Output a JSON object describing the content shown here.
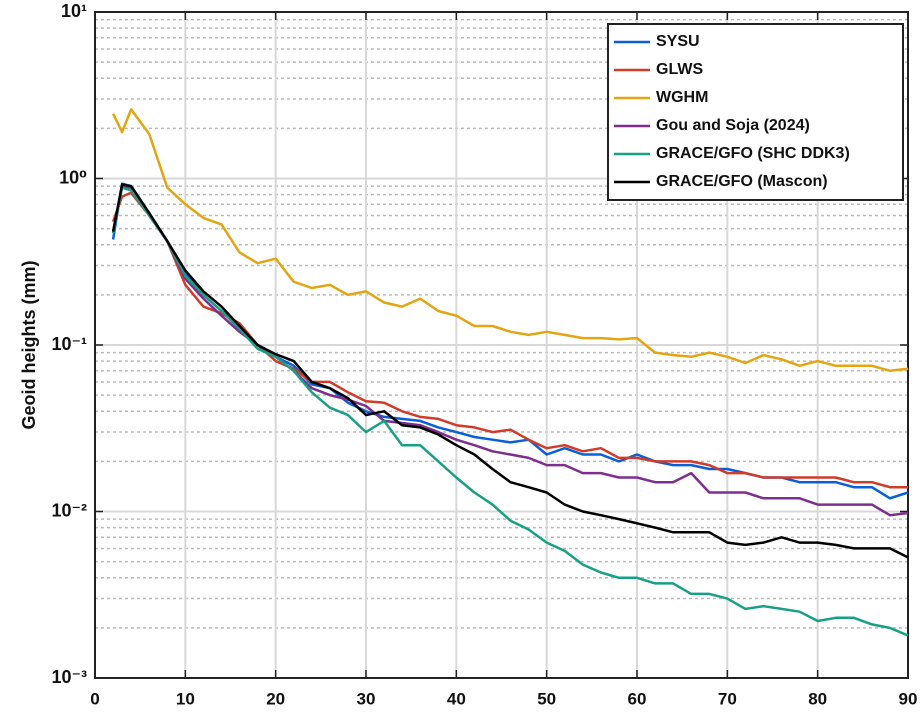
{
  "chart_data": {
    "type": "line",
    "y_label": "Geoid heights (mm)",
    "log_y": true,
    "grid": true,
    "legend": "top-right",
    "xlim": [
      0,
      90
    ],
    "xticks": [
      0,
      10,
      20,
      30,
      40,
      50,
      60,
      70,
      80,
      90
    ],
    "ylim": [
      0.001,
      10
    ],
    "yticks": [
      {
        "value": 0.001,
        "label": "10⁻³"
      },
      {
        "value": 0.01,
        "label": "10⁻²"
      },
      {
        "value": 0.1,
        "label": "10⁻¹"
      },
      {
        "value": 1,
        "label": "10⁰"
      },
      {
        "value": 10,
        "label": "10¹"
      }
    ],
    "yminor_ticks": [
      0.002,
      0.003,
      0.004,
      0.005,
      0.006,
      0.007,
      0.008,
      0.009,
      0.02,
      0.03,
      0.04,
      0.05,
      0.06,
      0.07,
      0.08,
      0.09,
      0.2,
      0.3,
      0.4,
      0.5,
      0.6,
      0.7,
      0.8,
      0.9,
      2,
      3,
      4,
      5,
      6,
      7,
      8,
      9
    ],
    "x": [
      2,
      3,
      4,
      6,
      8,
      10,
      12,
      14,
      16,
      18,
      20,
      22,
      24,
      26,
      28,
      30,
      32,
      34,
      36,
      38,
      40,
      42,
      44,
      46,
      48,
      50,
      52,
      54,
      56,
      58,
      60,
      62,
      64,
      66,
      68,
      70,
      72,
      74,
      76,
      78,
      80,
      82,
      84,
      86,
      88,
      90
    ],
    "series": [
      {
        "name": "SYSU",
        "color": "#0a5fd7",
        "values": [
          0.43,
          0.93,
          0.9,
          0.62,
          0.42,
          0.27,
          0.2,
          0.16,
          0.13,
          0.1,
          0.085,
          0.075,
          0.058,
          0.055,
          0.045,
          0.04,
          0.037,
          0.036,
          0.035,
          0.032,
          0.03,
          0.028,
          0.027,
          0.026,
          0.027,
          0.022,
          0.024,
          0.022,
          0.022,
          0.02,
          0.022,
          0.02,
          0.019,
          0.019,
          0.018,
          0.018,
          0.017,
          0.016,
          0.016,
          0.015,
          0.015,
          0.015,
          0.014,
          0.014,
          0.012,
          0.013
        ]
      },
      {
        "name": "GLWS",
        "color": "#d03b2a",
        "values": [
          0.55,
          0.78,
          0.82,
          0.6,
          0.42,
          0.23,
          0.17,
          0.155,
          0.135,
          0.1,
          0.08,
          0.072,
          0.06,
          0.06,
          0.052,
          0.046,
          0.045,
          0.04,
          0.037,
          0.036,
          0.033,
          0.032,
          0.03,
          0.031,
          0.027,
          0.024,
          0.025,
          0.023,
          0.024,
          0.021,
          0.021,
          0.02,
          0.02,
          0.02,
          0.019,
          0.017,
          0.017,
          0.016,
          0.016,
          0.016,
          0.016,
          0.016,
          0.015,
          0.015,
          0.014,
          0.014
        ]
      },
      {
        "name": "WGHM",
        "color": "#e3a511",
        "values": [
          2.45,
          1.9,
          2.6,
          1.85,
          0.88,
          0.7,
          0.58,
          0.53,
          0.36,
          0.31,
          0.33,
          0.24,
          0.22,
          0.23,
          0.2,
          0.21,
          0.18,
          0.17,
          0.19,
          0.16,
          0.15,
          0.13,
          0.13,
          0.12,
          0.115,
          0.12,
          0.115,
          0.11,
          0.11,
          0.108,
          0.11,
          0.09,
          0.087,
          0.085,
          0.09,
          0.085,
          0.078,
          0.087,
          0.082,
          0.075,
          0.08,
          0.075,
          0.075,
          0.075,
          0.07,
          0.072
        ]
      },
      {
        "name": "Gou and Soja (2024)",
        "color": "#7e2f8e",
        "values": [
          0.48,
          0.9,
          0.88,
          0.6,
          0.42,
          0.25,
          0.19,
          0.15,
          0.12,
          0.1,
          0.085,
          0.07,
          0.055,
          0.05,
          0.047,
          0.043,
          0.035,
          0.034,
          0.033,
          0.03,
          0.027,
          0.025,
          0.023,
          0.022,
          0.021,
          0.019,
          0.019,
          0.017,
          0.017,
          0.016,
          0.016,
          0.015,
          0.015,
          0.017,
          0.013,
          0.013,
          0.013,
          0.012,
          0.012,
          0.012,
          0.011,
          0.011,
          0.011,
          0.011,
          0.0095,
          0.0098
        ]
      },
      {
        "name": "GRACE/GFO (SHC DDK3)",
        "color": "#17a085",
        "values": [
          0.47,
          0.88,
          0.85,
          0.6,
          0.42,
          0.26,
          0.2,
          0.16,
          0.125,
          0.095,
          0.085,
          0.07,
          0.052,
          0.042,
          0.038,
          0.03,
          0.035,
          0.025,
          0.025,
          0.02,
          0.016,
          0.013,
          0.011,
          0.0088,
          0.0078,
          0.0065,
          0.0058,
          0.0048,
          0.0043,
          0.004,
          0.004,
          0.0037,
          0.0037,
          0.0032,
          0.0032,
          0.003,
          0.0026,
          0.0027,
          0.0026,
          0.0025,
          0.0022,
          0.0023,
          0.0023,
          0.0021,
          0.002,
          0.0018
        ]
      },
      {
        "name": "GRACE/GFO (Mascon)",
        "color": "#000000",
        "values": [
          0.48,
          0.92,
          0.9,
          0.62,
          0.42,
          0.28,
          0.21,
          0.17,
          0.13,
          0.1,
          0.088,
          0.08,
          0.06,
          0.055,
          0.048,
          0.038,
          0.04,
          0.033,
          0.032,
          0.029,
          0.025,
          0.022,
          0.018,
          0.015,
          0.014,
          0.013,
          0.011,
          0.01,
          0.0095,
          0.009,
          0.0085,
          0.008,
          0.0075,
          0.0075,
          0.0075,
          0.0065,
          0.0063,
          0.0065,
          0.007,
          0.0065,
          0.0065,
          0.0063,
          0.006,
          0.006,
          0.006,
          0.0053
        ]
      }
    ]
  }
}
